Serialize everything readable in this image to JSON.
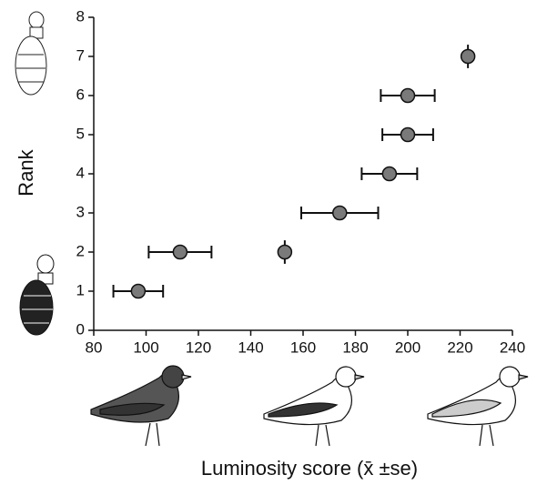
{
  "chart_data": {
    "type": "scatter",
    "x_label": "Luminosity score (x̄ ±se)",
    "y_label": "Rank",
    "series": [
      {
        "color": "#7a7a7a",
        "x": [
          97,
          113,
          153,
          174,
          193,
          200,
          200,
          223
        ],
        "y": [
          1,
          2,
          2,
          3,
          4,
          5,
          6,
          7
        ],
        "xerr": [
          9.5,
          12,
          null,
          14.7,
          10.6,
          9.7,
          10.3,
          null
        ],
        "yerr": [
          null,
          null,
          0.3,
          null,
          null,
          null,
          null,
          0.3
        ]
      }
    ],
    "xlim": [
      80,
      240
    ],
    "xticks": [
      80,
      100,
      120,
      140,
      160,
      180,
      200,
      220,
      240
    ],
    "ylim": [
      0,
      8
    ],
    "yticks": [
      0,
      1,
      2,
      3,
      4,
      5,
      6,
      7,
      8
    ]
  }
}
